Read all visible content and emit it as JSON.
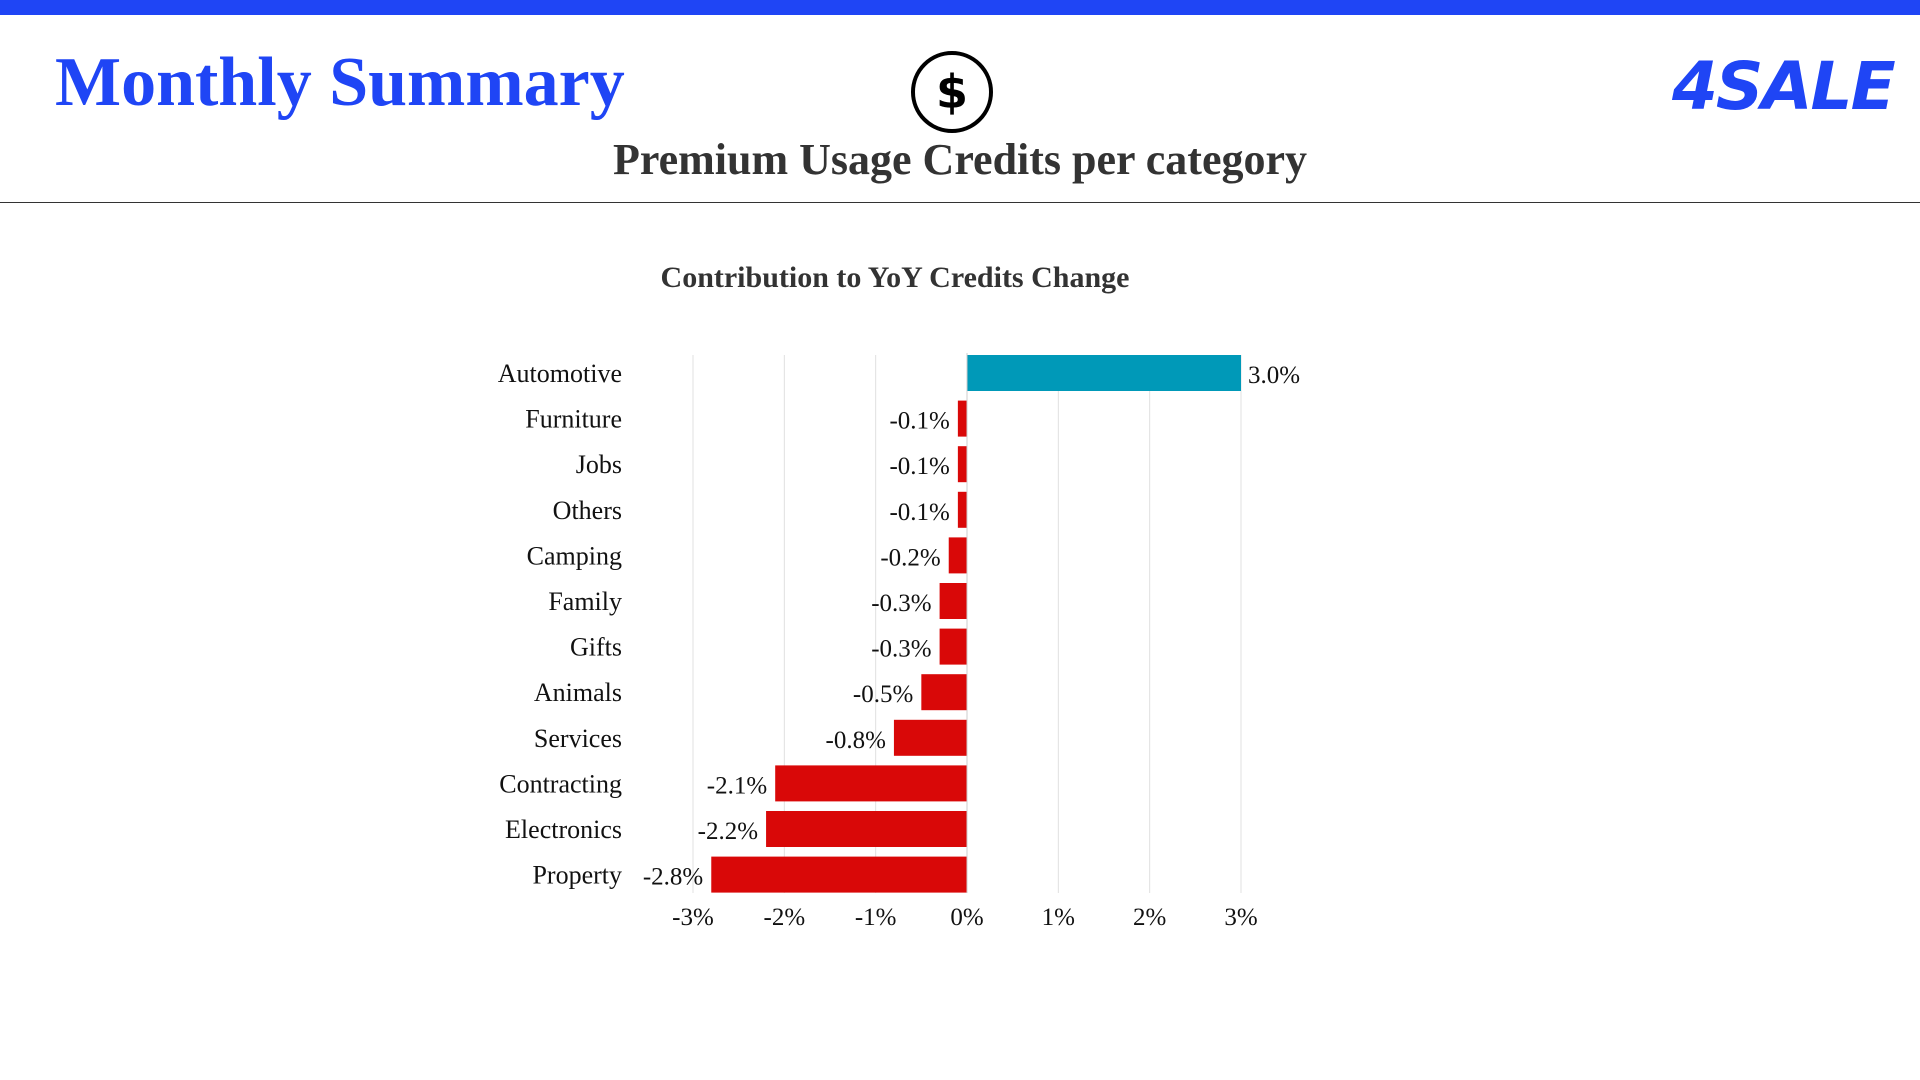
{
  "header": {
    "title": "Monthly Summary",
    "section_title": "Premium Usage Credits per category",
    "logo_text": "4SALE",
    "icon": "dollar-circle-icon"
  },
  "colors": {
    "brand": "#1f45f5",
    "positive_bar": "#0099b8",
    "negative_bar": "#d90808"
  },
  "chart_data": {
    "type": "bar",
    "orientation": "horizontal",
    "title": "Contribution to YoY Credits Change",
    "categories": [
      "Automotive",
      "Furniture",
      "Jobs",
      "Others",
      "Camping",
      "Family",
      "Gifts",
      "Animals",
      "Services",
      "Contracting",
      "Electronics",
      "Property"
    ],
    "values": [
      3.0,
      -0.1,
      -0.1,
      -0.1,
      -0.2,
      -0.3,
      -0.3,
      -0.5,
      -0.8,
      -2.1,
      -2.2,
      -2.8
    ],
    "value_labels": [
      "3.0%",
      "-0.1%",
      "-0.1%",
      "-0.1%",
      "-0.2%",
      "-0.3%",
      "-0.3%",
      "-0.5%",
      "-0.8%",
      "-2.1%",
      "-2.2%",
      "-2.8%"
    ],
    "xlim": [
      -3,
      3
    ],
    "x_ticks": [
      -3,
      -2,
      -1,
      0,
      1,
      2,
      3
    ],
    "x_tick_labels": [
      "-3%",
      "-2%",
      "-1%",
      "0%",
      "1%",
      "2%",
      "3%"
    ],
    "xlabel": "",
    "ylabel": "",
    "grid": true,
    "legend": "none"
  }
}
